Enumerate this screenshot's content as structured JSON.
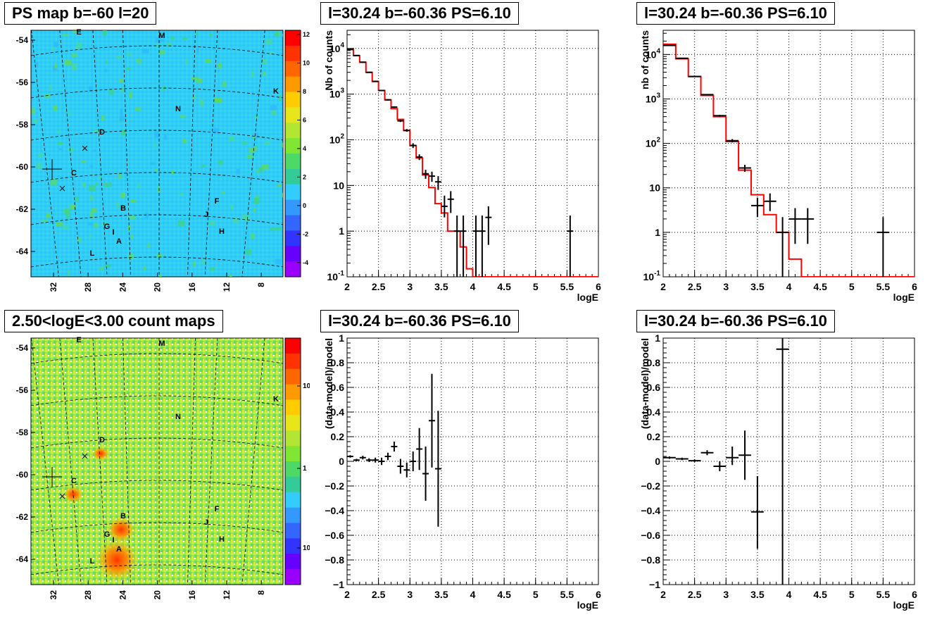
{
  "map_top": {
    "title": "PS map b=-60 l=20",
    "colorbar_ticks": [
      "12",
      "10",
      "8",
      "6",
      "4",
      "2",
      "0",
      "-2",
      "-4"
    ],
    "colorbar_values": [
      12,
      10,
      8,
      6,
      4,
      2,
      0,
      -2,
      -4
    ],
    "colorbar_range": [
      -5,
      12.3
    ],
    "y_ticks": [
      "-54",
      "-56",
      "-58",
      "-60",
      "-62",
      "-64"
    ],
    "x_ticks": [
      "32",
      "28",
      "24",
      "20",
      "16",
      "12",
      "8"
    ],
    "sources": [
      "E",
      "M",
      "K",
      "N",
      "D",
      "C",
      "B",
      "F",
      "J",
      "G",
      "I",
      "H",
      "A",
      "L"
    ]
  },
  "map_bottom": {
    "title": "2.50<logE<3.00 count maps",
    "colorbar_ticks": [
      "10",
      "1",
      "10⁻¹"
    ],
    "y_ticks": [
      "-54",
      "-56",
      "-58",
      "-60",
      "-62",
      "-64"
    ],
    "x_ticks": [
      "32",
      "28",
      "24",
      "20",
      "16",
      "12",
      "8"
    ],
    "sources": [
      "E",
      "M",
      "K",
      "N",
      "D",
      "C",
      "B",
      "F",
      "J",
      "G",
      "I",
      "H",
      "A",
      "L"
    ]
  },
  "chart_data": [
    {
      "type": "line",
      "title": "l=30.24 b=-60.36 PS=6.10",
      "xlabel": "logE",
      "ylabel": "Nb of counts",
      "xlim": [
        2,
        6
      ],
      "ylim": [
        0.1,
        25000
      ],
      "yscale": "log",
      "grid": true,
      "x_ticks": [
        "2",
        "2.5",
        "3",
        "3.5",
        "4",
        "4.5",
        "5",
        "5.5",
        "6"
      ],
      "y_ticks": [
        "10⁻¹",
        "1",
        "10",
        "10²",
        "10³",
        "10⁴"
      ],
      "series": [
        {
          "type": "step",
          "color": "#ff0000",
          "edges": [
            2,
            2.1,
            2.2,
            2.3,
            2.4,
            2.5,
            2.6,
            2.7,
            2.8,
            2.9,
            3.0,
            3.1,
            3.2,
            3.3,
            3.4,
            3.5,
            3.6,
            3.7,
            3.8,
            3.9,
            4.0,
            4.1,
            6.0
          ],
          "values": [
            9500,
            7000,
            5000,
            3000,
            1900,
            1200,
            750,
            480,
            280,
            160,
            75,
            40,
            17,
            9,
            4,
            2.5,
            1,
            1,
            0.45,
            0.15,
            0.1,
            0.1
          ]
        },
        {
          "type": "errorbar",
          "color": "#000000",
          "x": [
            2.05,
            2.15,
            2.25,
            2.35,
            2.45,
            2.55,
            2.65,
            2.75,
            2.85,
            2.95,
            3.05,
            3.15,
            3.25,
            3.35,
            3.45,
            3.55,
            3.65,
            3.75,
            3.85,
            4.05,
            4.15,
            4.25,
            5.55
          ],
          "y": [
            9500,
            7000,
            5000,
            3000,
            1900,
            1200,
            750,
            520,
            260,
            160,
            75,
            42,
            18,
            16,
            12,
            3.5,
            5,
            1,
            1,
            1,
            1,
            2,
            1
          ],
          "ylo": [
            9300,
            6900,
            4900,
            2950,
            1850,
            1170,
            720,
            500,
            245,
            150,
            66,
            36,
            14,
            12,
            8,
            2,
            2.5,
            0.1,
            0.1,
            0.1,
            0.1,
            0.5,
            0.1
          ],
          "yhi": [
            9700,
            7100,
            5100,
            3050,
            1950,
            1230,
            780,
            540,
            275,
            172,
            84,
            48,
            22,
            20,
            16,
            6,
            7.5,
            2.2,
            2.2,
            2.2,
            2.2,
            3.5,
            2.2
          ],
          "xerr": 0.05
        }
      ]
    },
    {
      "type": "line",
      "title": "l=30.24 b=-60.36 PS=6.10",
      "xlabel": "logE",
      "ylabel": "nb of counts",
      "xlim": [
        2,
        6
      ],
      "ylim": [
        0.1,
        35000
      ],
      "yscale": "log",
      "grid": true,
      "x_ticks": [
        "2",
        "2.5",
        "3",
        "3.5",
        "4",
        "4.5",
        "5",
        "5.5",
        "6"
      ],
      "y_ticks": [
        "10⁻¹",
        "1",
        "10",
        "10²",
        "10³",
        "10⁴"
      ],
      "series": [
        {
          "type": "step",
          "color": "#ff0000",
          "edges": [
            2,
            2.2,
            2.4,
            2.6,
            2.8,
            3.0,
            3.2,
            3.4,
            3.6,
            3.8,
            4.0,
            4.2,
            6.0
          ],
          "values": [
            17000,
            8000,
            3200,
            1200,
            400,
            110,
            25,
            7,
            2.5,
            1,
            0.25,
            0.1
          ]
        },
        {
          "type": "errorbar",
          "color": "#000000",
          "x": [
            2.1,
            2.3,
            2.5,
            2.7,
            2.9,
            3.1,
            3.3,
            3.5,
            3.7,
            3.9,
            4.1,
            4.3,
            5.5
          ],
          "y": [
            16000,
            8200,
            3200,
            1250,
            420,
            115,
            28,
            4,
            5,
            1,
            2,
            2,
            1
          ],
          "ylo": [
            15800,
            8100,
            3150,
            1220,
            400,
            105,
            23,
            2.2,
            3,
            0.1,
            0.55,
            0.55,
            0.1
          ],
          "yhi": [
            16200,
            8300,
            3250,
            1280,
            440,
            125,
            33,
            6,
            7.5,
            2.2,
            3.5,
            3.5,
            2.2
          ],
          "xerr": 0.1
        }
      ]
    },
    {
      "type": "scatter",
      "title": "l=30.24 b=-60.36 PS=6.10",
      "xlabel": "logE",
      "ylabel": "(data-model)/model",
      "xlim": [
        2,
        6
      ],
      "ylim": [
        -1,
        1
      ],
      "grid": true,
      "x_ticks": [
        "2",
        "2.5",
        "3",
        "3.5",
        "4",
        "4.5",
        "5",
        "5.5",
        "6"
      ],
      "y_ticks": [
        "−1",
        "−0.8",
        "−0.6",
        "−0.4",
        "−0.2",
        "0",
        "0.2",
        "0.4",
        "0.6",
        "0.8",
        "1"
      ],
      "y_tick_values": [
        -1,
        -0.8,
        -0.6,
        -0.4,
        -0.2,
        0,
        0.2,
        0.4,
        0.6,
        0.8,
        1
      ],
      "series": [
        {
          "type": "errorbar",
          "color": "#000000",
          "x": [
            2.05,
            2.15,
            2.25,
            2.35,
            2.45,
            2.55,
            2.65,
            2.75,
            2.85,
            2.95,
            3.05,
            3.15,
            3.25,
            3.35,
            3.45
          ],
          "y": [
            0.04,
            0.01,
            0.03,
            0.01,
            0.01,
            0.0,
            0.04,
            0.12,
            -0.04,
            -0.07,
            0.0,
            0.1,
            -0.1,
            0.33,
            -0.06
          ],
          "ylo": [
            0.03,
            0.0,
            0.015,
            -0.005,
            -0.01,
            -0.03,
            0.01,
            0.08,
            -0.1,
            -0.13,
            -0.08,
            -0.07,
            -0.32,
            -0.05,
            -0.53
          ],
          "yhi": [
            0.05,
            0.02,
            0.045,
            0.025,
            0.03,
            0.03,
            0.07,
            0.16,
            0.02,
            -0.01,
            0.08,
            0.27,
            0.12,
            0.71,
            0.41
          ],
          "xerr": 0.05
        }
      ]
    },
    {
      "type": "scatter",
      "title": "l=30.24 b=-60.36 PS=6.10",
      "xlabel": "logE",
      "ylabel": "(data-model)/model",
      "xlim": [
        2,
        6
      ],
      "ylim": [
        -1,
        1
      ],
      "grid": true,
      "x_ticks": [
        "2",
        "2.5",
        "3",
        "3.5",
        "4",
        "4.5",
        "5",
        "5.5",
        "6"
      ],
      "y_ticks": [
        "−1",
        "−0.8",
        "−0.6",
        "−0.4",
        "−0.2",
        "0",
        "0.2",
        "0.4",
        "0.6",
        "0.8",
        "1"
      ],
      "y_tick_values": [
        -1,
        -0.8,
        -0.6,
        -0.4,
        -0.2,
        0,
        0.2,
        0.4,
        0.6,
        0.8,
        1
      ],
      "series": [
        {
          "type": "errorbar",
          "color": "#000000",
          "x": [
            2.1,
            2.3,
            2.5,
            2.7,
            2.9,
            3.1,
            3.3,
            3.5,
            3.9
          ],
          "y": [
            0.03,
            0.02,
            0.005,
            0.07,
            -0.04,
            0.03,
            0.05,
            -0.41,
            0.91
          ],
          "ylo": [
            0.02,
            0.01,
            -0.005,
            0.05,
            -0.08,
            -0.03,
            -0.15,
            -0.71,
            -1.0
          ],
          "yhi": [
            0.04,
            0.03,
            0.015,
            0.09,
            0.0,
            0.12,
            0.25,
            -0.12,
            1.0
          ],
          "xerr": 0.1
        }
      ]
    }
  ]
}
